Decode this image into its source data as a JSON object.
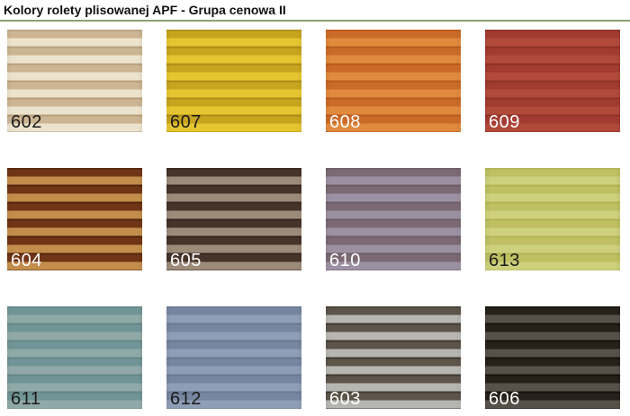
{
  "page": {
    "title": "Kolory rolety plisowanej APF - Grupa cenowa II",
    "divider_color": "#8aa470",
    "background_color": "#ffffff"
  },
  "swatches": [
    {
      "label": "602",
      "label_color": "#1a1a1a",
      "stripe_light": "#ece3cd",
      "stripe_dark": "#ccb592",
      "stripe_fold": "#b89f7c"
    },
    {
      "label": "607",
      "label_color": "#1a1a1a",
      "stripe_light": "#e5c630",
      "stripe_dark": "#c7a51e",
      "stripe_fold": "#ad8d18"
    },
    {
      "label": "608",
      "label_color": "#ffffff",
      "stripe_light": "#e08a3d",
      "stripe_dark": "#cb6b29",
      "stripe_fold": "#b95a1f"
    },
    {
      "label": "609",
      "label_color": "#ffffff",
      "stripe_light": "#b14a3b",
      "stripe_dark": "#a23b31",
      "stripe_fold": "#8f3228"
    },
    {
      "label": "604",
      "label_color": "#ffffff",
      "stripe_light": "#c38d4b",
      "stripe_dark": "#703516",
      "stripe_fold": "#53250c"
    },
    {
      "label": "605",
      "label_color": "#ffffff",
      "stripe_light": "#9d8b7a",
      "stripe_dark": "#46342a",
      "stripe_fold": "#362720"
    },
    {
      "label": "610",
      "label_color": "#ffffff",
      "stripe_light": "#9c91a2",
      "stripe_dark": "#7b6a73",
      "stripe_fold": "#6d5d66"
    },
    {
      "label": "613",
      "label_color": "#1a1a1a",
      "stripe_light": "#cdd07c",
      "stripe_dark": "#bec062",
      "stripe_fold": "#b3b555"
    },
    {
      "label": "611",
      "label_color": "#1a1a1a",
      "stripe_light": "#90a9a8",
      "stripe_dark": "#719596",
      "stripe_fold": "#648788"
    },
    {
      "label": "612",
      "label_color": "#1a1a1a",
      "stripe_light": "#8f9db6",
      "stripe_dark": "#7686a0",
      "stripe_fold": "#697992"
    },
    {
      "label": "603",
      "label_color": "#ffffff",
      "stripe_light": "#b6b7b2",
      "stripe_dark": "#5d544a",
      "stripe_fold": "#423a30"
    },
    {
      "label": "606",
      "label_color": "#ffffff",
      "stripe_light": "#56524a",
      "stripe_dark": "#26211a",
      "stripe_fold": "#15120d"
    }
  ]
}
